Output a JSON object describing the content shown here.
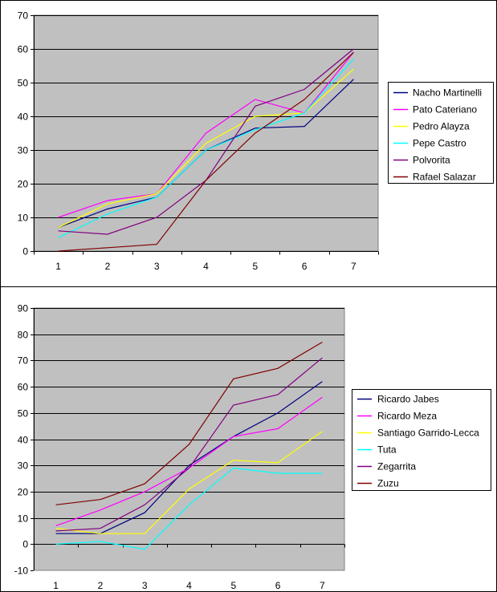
{
  "chart_data": [
    {
      "type": "line",
      "title": "",
      "xlabel": "",
      "ylabel": "",
      "categories": [
        "1",
        "2",
        "3",
        "4",
        "5",
        "6",
        "7"
      ],
      "ylim": [
        0,
        70
      ],
      "yticks": [
        0,
        10,
        20,
        30,
        40,
        50,
        60,
        70
      ],
      "grid": true,
      "legend_position": "right",
      "plot_background": "#c0c0c0",
      "series": [
        {
          "name": "Nacho Martinelli",
          "color": "#000080",
          "values": [
            7,
            12.5,
            16,
            30,
            36.5,
            37,
            51
          ]
        },
        {
          "name": "Pato Cateriano",
          "color": "#ff00ff",
          "values": [
            10,
            15,
            17,
            35,
            45,
            41,
            59
          ]
        },
        {
          "name": "Pedro Alayza",
          "color": "#ffff00",
          "values": [
            7,
            14,
            17,
            32,
            40,
            41,
            54
          ]
        },
        {
          "name": "Pepe Castro",
          "color": "#00ffff",
          "values": [
            4,
            11,
            16,
            30,
            36,
            41,
            57
          ]
        },
        {
          "name": "Polvorita",
          "color": "#800080",
          "values": [
            6,
            5,
            10,
            21,
            43,
            48,
            60
          ]
        },
        {
          "name": "Rafael Salazar",
          "color": "#800000",
          "values": [
            0,
            1,
            2,
            21,
            35,
            45,
            59
          ]
        }
      ]
    },
    {
      "type": "line",
      "title": "",
      "xlabel": "",
      "ylabel": "",
      "categories": [
        "1",
        "2",
        "3",
        "4",
        "5",
        "6",
        "7"
      ],
      "ylim": [
        -10,
        90
      ],
      "yticks": [
        -10,
        0,
        10,
        20,
        30,
        40,
        50,
        60,
        70,
        80,
        90
      ],
      "grid": true,
      "legend_position": "right",
      "plot_background": "#c0c0c0",
      "series": [
        {
          "name": "Ricardo Jabes",
          "color": "#000080",
          "values": [
            4,
            4,
            12,
            30,
            41,
            50,
            62
          ]
        },
        {
          "name": "Ricardo Meza",
          "color": "#ff00ff",
          "values": [
            7,
            13,
            20,
            29,
            41,
            44,
            56
          ]
        },
        {
          "name": "Santiago Garrido-Lecca",
          "color": "#ffff00",
          "values": [
            6,
            4,
            4,
            21,
            32,
            31,
            43
          ]
        },
        {
          "name": "Tuta",
          "color": "#00ffff",
          "values": [
            0,
            1,
            -2,
            15,
            29,
            27,
            27
          ]
        },
        {
          "name": "Zegarrita",
          "color": "#800080",
          "values": [
            5,
            6,
            15,
            29,
            53,
            57,
            71
          ]
        },
        {
          "name": "Zuzu",
          "color": "#800000",
          "values": [
            15,
            17,
            23,
            38,
            63,
            67,
            77
          ]
        }
      ]
    }
  ]
}
